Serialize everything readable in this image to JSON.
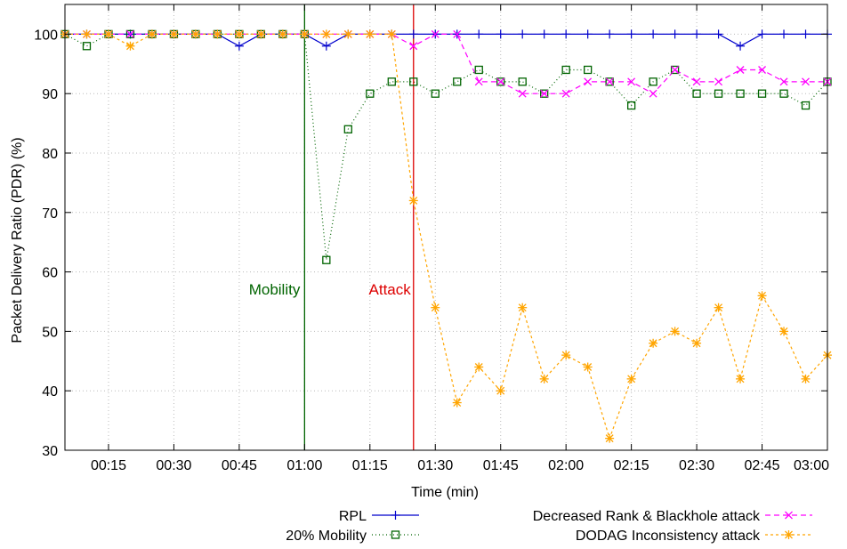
{
  "chart_data": {
    "type": "line",
    "title": "",
    "xlabel": "Time (min)",
    "ylabel": "Packet Delivery Ratio (PDR) (%)",
    "ylim": [
      30,
      105
    ],
    "xlim_seconds": [
      5,
      180
    ],
    "x_ticks": [
      "00:15",
      "00:30",
      "00:45",
      "01:00",
      "01:15",
      "01:30",
      "01:45",
      "02:00",
      "02:15",
      "02:30",
      "02:45",
      "03:00"
    ],
    "y_ticks": [
      "30",
      "40",
      "50",
      "60",
      "70",
      "80",
      "90",
      "100"
    ],
    "grid": true,
    "legend_position": "bottom",
    "x": [
      "00:05",
      "00:10",
      "00:15",
      "00:20",
      "00:25",
      "00:30",
      "00:35",
      "00:40",
      "00:45",
      "00:50",
      "00:55",
      "01:00",
      "01:05",
      "01:10",
      "01:15",
      "01:20",
      "01:25",
      "01:30",
      "01:35",
      "01:40",
      "01:45",
      "01:50",
      "01:55",
      "02:00",
      "02:05",
      "02:10",
      "02:15",
      "02:20",
      "02:25",
      "02:30",
      "02:35",
      "02:40",
      "02:45",
      "02:50",
      "02:55",
      "03:00"
    ],
    "series": [
      {
        "name": "RPL",
        "color": "#0000cc",
        "marker": "plus",
        "dash": "solid",
        "values": [
          100,
          100,
          100,
          100,
          100,
          100,
          100,
          100,
          98,
          100,
          100,
          100,
          98,
          100,
          100,
          100,
          100,
          100,
          100,
          100,
          100,
          100,
          100,
          100,
          100,
          100,
          100,
          100,
          100,
          100,
          100,
          98,
          100,
          100,
          100,
          100
        ]
      },
      {
        "name": "20% Mobility",
        "color": "#006400",
        "marker": "square",
        "dash": "dotted",
        "values": [
          100,
          98,
          100,
          100,
          100,
          100,
          100,
          100,
          100,
          100,
          100,
          100,
          62,
          84,
          90,
          92,
          92,
          90,
          92,
          94,
          92,
          92,
          90,
          94,
          94,
          92,
          88,
          92,
          94,
          90,
          90,
          90,
          90,
          90,
          88,
          92
        ]
      },
      {
        "name": "Decreased Rank & Blackhole attack",
        "color": "#ff00ff",
        "marker": "x",
        "dash": "dashed",
        "values": [
          100,
          100,
          100,
          100,
          100,
          100,
          100,
          100,
          100,
          100,
          100,
          100,
          100,
          100,
          100,
          100,
          98,
          100,
          100,
          92,
          92,
          90,
          90,
          90,
          92,
          92,
          92,
          90,
          94,
          92,
          92,
          94,
          94,
          92,
          92,
          92
        ]
      },
      {
        "name": "DODAG Inconsistency attack",
        "color": "#ffa500",
        "marker": "star",
        "dash": "dashed-fine",
        "values": [
          100,
          100,
          100,
          98,
          100,
          100,
          100,
          100,
          100,
          100,
          100,
          100,
          100,
          100,
          100,
          100,
          72,
          54,
          38,
          44,
          40,
          54,
          42,
          46,
          44,
          32,
          42,
          48,
          50,
          48,
          54,
          42,
          56,
          50,
          42,
          46
        ]
      }
    ],
    "annotations": [
      {
        "label": "Mobility",
        "x": "01:00",
        "color": "#006400"
      },
      {
        "label": "Attack",
        "x": "01:25",
        "color": "#dd0000"
      }
    ]
  }
}
